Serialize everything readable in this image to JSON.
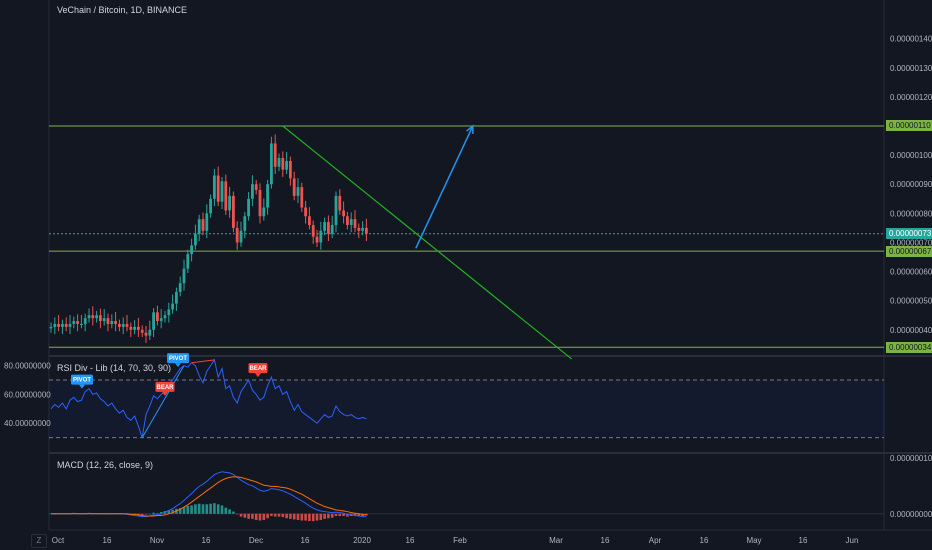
{
  "header": {
    "symbol_title": "VeChain / Bitcoin, 1D, BINANCE"
  },
  "colors": {
    "background": "#131722",
    "up_candle": "#26a69a",
    "down_candle": "#ef5350",
    "trendline": "#21b321",
    "horizontal_level": "#7cb342",
    "arrow": "#2196f3",
    "rsi_line": "#2962ff",
    "macd_line": "#2962ff",
    "signal_line": "#ff6d00",
    "pivot_tag": "#2196f3",
    "bear_tag": "#f44336"
  },
  "price_axis": {
    "ticks": [
      "0.00000140",
      "0.00000130",
      "0.00000120",
      "0.00000100",
      "0.00000090",
      "0.00000080",
      "0.00000070",
      "0.00000060",
      "0.00000050",
      "0.00000040",
      "0.00000030"
    ],
    "tags": [
      {
        "label": "0.00000110",
        "value": 1.1,
        "color": "#7cb342",
        "text_color": "#131722"
      },
      {
        "label": "0.00000073",
        "value": 0.73,
        "color": "#26a69a",
        "text_color": "#ffffff"
      },
      {
        "label": "0.00000067",
        "value": 0.67,
        "color": "#7cb342",
        "text_color": "#131722"
      },
      {
        "label": "0.00000034",
        "value": 0.34,
        "color": "#7cb342",
        "text_color": "#131722"
      }
    ]
  },
  "time_axis": {
    "labels": [
      "Oct",
      "16",
      "Nov",
      "16",
      "Dec",
      "16",
      "2020",
      "16",
      "Feb",
      "Mar",
      "16",
      "Apr",
      "16",
      "May",
      "16",
      "Jun"
    ]
  },
  "rsi_pane": {
    "title": "RSI Div - Lib (14, 70, 30, 90)",
    "ticks": [
      "80.00000000",
      "60.00000000",
      "40.00000000"
    ],
    "tags": [
      {
        "label": "PIVOT",
        "type": "pivot",
        "x": 82,
        "value": 64
      },
      {
        "label": "BEAR",
        "type": "bear",
        "x": 165,
        "value": 59
      },
      {
        "label": "PIVOT",
        "type": "pivot",
        "x": 178,
        "value": 79
      },
      {
        "label": "BEAR",
        "type": "bear",
        "x": 258,
        "value": 72
      }
    ]
  },
  "macd_pane": {
    "title": "MACD (12, 26, close, 9)",
    "ticks": [
      "0.00000010",
      "0.00000000"
    ]
  },
  "corner_label": "Z",
  "chart_data": [
    {
      "type": "candlestick",
      "title": "VeChain / Bitcoin, 1D, BINANCE",
      "ylim": [
        0.31,
        1.44
      ],
      "y_unit": "0.000001 BTC",
      "closes": [
        0.41,
        0.42,
        0.41,
        0.42,
        0.41,
        0.42,
        0.43,
        0.42,
        0.42,
        0.44,
        0.45,
        0.44,
        0.45,
        0.43,
        0.44,
        0.42,
        0.43,
        0.42,
        0.41,
        0.42,
        0.41,
        0.4,
        0.41,
        0.4,
        0.39,
        0.38,
        0.4,
        0.46,
        0.43,
        0.44,
        0.45,
        0.47,
        0.49,
        0.53,
        0.56,
        0.61,
        0.66,
        0.69,
        0.73,
        0.78,
        0.74,
        0.8,
        0.85,
        0.93,
        0.84,
        0.91,
        0.81,
        0.86,
        0.75,
        0.7,
        0.74,
        0.79,
        0.85,
        0.9,
        0.88,
        0.79,
        0.82,
        0.9,
        1.04,
        0.96,
        0.99,
        0.95,
        0.98,
        0.92,
        0.86,
        0.89,
        0.82,
        0.79,
        0.76,
        0.72,
        0.7,
        0.74,
        0.77,
        0.73,
        0.76,
        0.86,
        0.81,
        0.79,
        0.76,
        0.78,
        0.75,
        0.74,
        0.75,
        0.73
      ],
      "horizontal_levels": [
        1.1,
        0.73,
        0.67,
        0.34
      ],
      "trendline": {
        "from": {
          "x_index": 61,
          "y": 1.1
        },
        "to": {
          "x_index": 137,
          "y": 0.3
        }
      },
      "projection_arrow": {
        "from": {
          "x_index": 96,
          "y": 0.68
        },
        "to": {
          "x_index": 111,
          "y": 1.1
        }
      }
    },
    {
      "type": "line",
      "title": "RSI Div - Lib (14, 70, 30, 90)",
      "ylim": [
        20,
        86
      ],
      "levels": [
        70,
        30
      ],
      "values": [
        50,
        53,
        51,
        54,
        50,
        56,
        58,
        55,
        56,
        62,
        64,
        60,
        61,
        57,
        55,
        52,
        54,
        50,
        47,
        49,
        44,
        42,
        45,
        38,
        30,
        46,
        52,
        59,
        57,
        60,
        62,
        67,
        70,
        74,
        78,
        80,
        79,
        82,
        80,
        73,
        68,
        76,
        80,
        84,
        72,
        78,
        64,
        66,
        58,
        54,
        62,
        66,
        70,
        63,
        60,
        56,
        58,
        66,
        72,
        64,
        66,
        60,
        62,
        55,
        49,
        53,
        48,
        46,
        44,
        42,
        40,
        43,
        46,
        44,
        45,
        52,
        48,
        46,
        45,
        46,
        44,
        43,
        44,
        43
      ]
    },
    {
      "type": "line",
      "title": "MACD (12, 26, close, 9)",
      "ylim": [
        -0.2,
        1.05
      ],
      "y_unit": "0.0000001 BTC",
      "macd": [
        0.0,
        0.0,
        0.0,
        0.0,
        0.0,
        0.0,
        0.01,
        0.0,
        0.0,
        0.0,
        0.01,
        0.0,
        0.0,
        0.0,
        0.0,
        0.0,
        0.0,
        0.0,
        0.0,
        0.0,
        -0.01,
        -0.02,
        -0.03,
        -0.04,
        -0.05,
        -0.05,
        -0.04,
        -0.02,
        -0.02,
        0.0,
        0.03,
        0.06,
        0.09,
        0.14,
        0.18,
        0.24,
        0.3,
        0.36,
        0.43,
        0.49,
        0.53,
        0.58,
        0.64,
        0.7,
        0.73,
        0.75,
        0.74,
        0.73,
        0.7,
        0.65,
        0.6,
        0.56,
        0.52,
        0.5,
        0.46,
        0.42,
        0.4,
        0.42,
        0.45,
        0.44,
        0.43,
        0.41,
        0.38,
        0.35,
        0.31,
        0.27,
        0.23,
        0.19,
        0.14,
        0.1,
        0.07,
        0.05,
        0.04,
        0.03,
        0.02,
        0.03,
        0.02,
        0.01,
        -0.01,
        -0.02,
        -0.03,
        -0.04,
        -0.05,
        -0.05
      ],
      "signal": [
        0.0,
        0.0,
        0.0,
        0.0,
        0.0,
        0.0,
        0.0,
        0.0,
        0.0,
        0.0,
        0.0,
        0.0,
        0.0,
        0.0,
        0.0,
        0.0,
        0.0,
        0.0,
        0.0,
        0.0,
        0.0,
        -0.01,
        -0.01,
        -0.02,
        -0.03,
        -0.04,
        -0.04,
        -0.04,
        -0.03,
        -0.03,
        -0.02,
        0.0,
        0.02,
        0.05,
        0.08,
        0.12,
        0.16,
        0.21,
        0.26,
        0.31,
        0.36,
        0.41,
        0.46,
        0.51,
        0.56,
        0.6,
        0.63,
        0.65,
        0.66,
        0.66,
        0.65,
        0.63,
        0.61,
        0.59,
        0.57,
        0.54,
        0.51,
        0.5,
        0.49,
        0.49,
        0.48,
        0.47,
        0.46,
        0.44,
        0.41,
        0.38,
        0.35,
        0.31,
        0.27,
        0.23,
        0.19,
        0.16,
        0.13,
        0.11,
        0.09,
        0.07,
        0.06,
        0.05,
        0.04,
        0.02,
        0.01,
        0.0,
        -0.01,
        -0.02
      ]
    }
  ]
}
